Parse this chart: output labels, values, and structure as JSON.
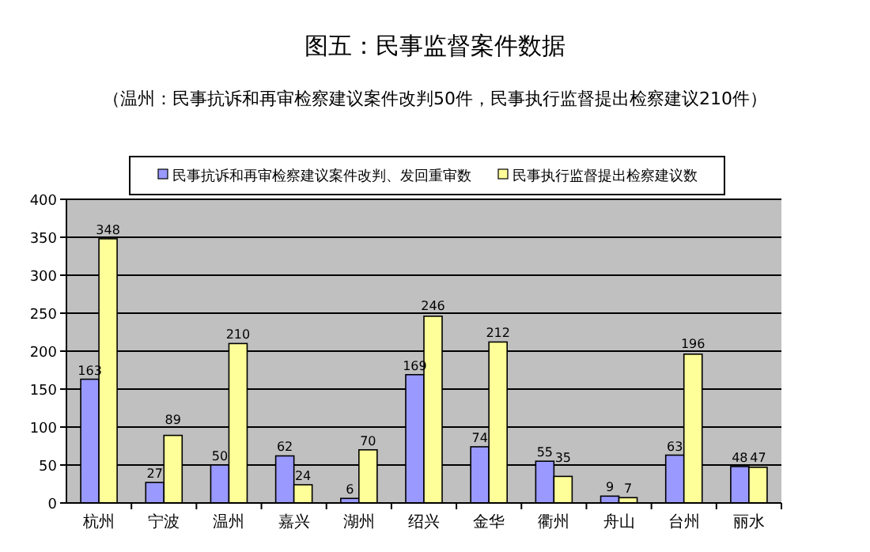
{
  "chart_data": {
    "type": "bar",
    "title": "图五：民事监督案件数据",
    "subtitle": "（温州：民事抗诉和再审检察建议案件改判50件，民事执行监督提出检察建议210件）",
    "categories": [
      "杭州",
      "宁波",
      "温州",
      "嘉兴",
      "湖州",
      "绍兴",
      "金华",
      "衢州",
      "舟山",
      "台州",
      "丽水"
    ],
    "series": [
      {
        "name": "民事抗诉和再审检察建议案件改判、发回重审数",
        "color": "#9999ff",
        "values": [
          163,
          27,
          50,
          62,
          6,
          169,
          74,
          55,
          9,
          63,
          48
        ]
      },
      {
        "name": "民事执行监督提出检察建议数",
        "color": "#ffff99",
        "values": [
          348,
          89,
          210,
          24,
          70,
          246,
          212,
          35,
          7,
          196,
          47
        ]
      }
    ],
    "ylim": [
      0,
      400
    ],
    "yticks": [
      0,
      50,
      100,
      150,
      200,
      250,
      300,
      350,
      400
    ],
    "grid": "y",
    "legend": "top",
    "data_labels": true
  }
}
